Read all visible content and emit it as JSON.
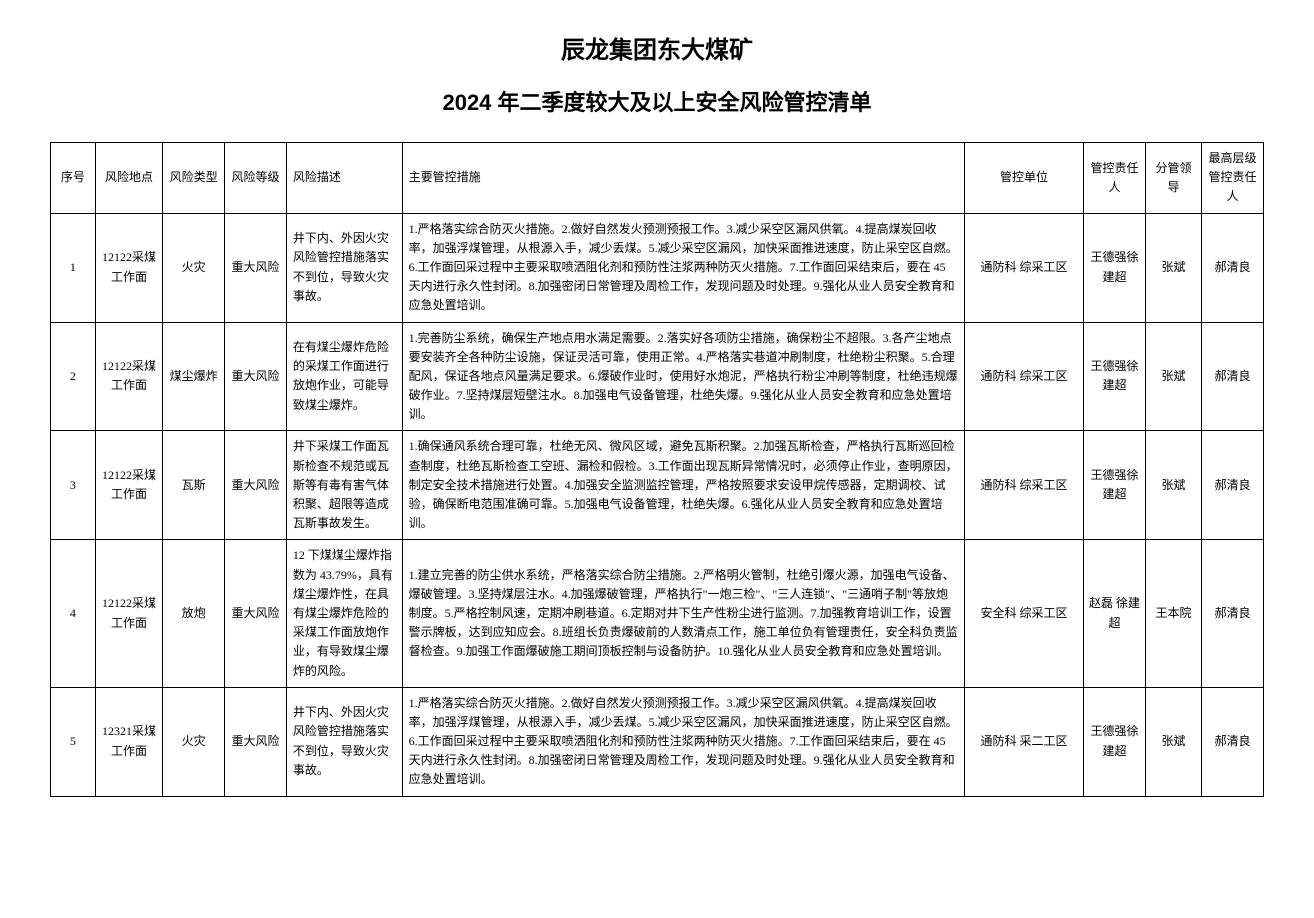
{
  "title": "辰龙集团东大煤矿",
  "subtitle": "2024 年二季度较大及以上安全风险管控清单",
  "headers": {
    "seq": "序号",
    "location": "风险地点",
    "type": "风险类型",
    "level": "风险等级",
    "desc": "风险描述",
    "measures": "主要管控措施",
    "unit": "管控单位",
    "person": "管控责任人",
    "leader": "分管领导",
    "top": "最高层级管控责任人"
  },
  "rows": [
    {
      "seq": "1",
      "location": "12122采煤工作面",
      "type": "火灾",
      "level": "重大风险",
      "desc": "井下内、外因火灾风险管控措施落实不到位，导致火灾事故。",
      "measures": "1.严格落实综合防灭火措施。2.做好自然发火预测预报工作。3.减少采空区漏风供氧。4.提高煤炭回收率，加强浮煤管理，从根源入手，减少丢煤。5.减少采空区漏风，加快采面推进速度，防止采空区自燃。6.工作面回采过程中主要采取喷洒阻化剂和预防性注浆两种防灭火措施。7.工作面回采结束后，要在 45 天内进行永久性封闭。8.加强密闭日常管理及周检工作，发现问题及时处理。9.强化从业人员安全教育和应急处置培训。",
      "unit": "通防科 综采工区",
      "person": "王德强徐建超",
      "leader": "张斌",
      "top": "郝清良"
    },
    {
      "seq": "2",
      "location": "12122采煤工作面",
      "type": "煤尘爆炸",
      "level": "重大风险",
      "desc": "在有煤尘爆炸危险的采煤工作面进行放炮作业，可能导致煤尘爆炸。",
      "measures": "1.完善防尘系统，确保生产地点用水满足需要。2.落实好各项防尘措施，确保粉尘不超限。3.各产尘地点要安装齐全各种防尘设施，保证灵活可靠，使用正常。4.严格落实巷道冲刷制度，杜绝粉尘积聚。5.合理配风，保证各地点风量满足要求。6.爆破作业时，使用好水炮泥，严格执行粉尘冲刷等制度，杜绝违规爆破作业。7.坚持煤层短壁注水。8.加强电气设备管理，杜绝失爆。9.强化从业人员安全教育和应急处置培训。",
      "unit": "通防科 综采工区",
      "person": "王德强徐建超",
      "leader": "张斌",
      "top": "郝清良"
    },
    {
      "seq": "3",
      "location": "12122采煤工作面",
      "type": "瓦斯",
      "level": "重大风险",
      "desc": "井下采煤工作面瓦斯检查不规范或瓦斯等有毒有害气体积聚、超限等造成瓦斯事故发生。",
      "measures": "1.确保通风系统合理可靠，杜绝无风、微风区域，避免瓦斯积聚。2.加强瓦斯检查，严格执行瓦斯巡回检查制度，杜绝瓦斯检查工空班、漏检和假检。3.工作面出现瓦斯异常情况时，必须停止作业，查明原因，制定安全技术措施进行处置。4.加强安全监测监控管理，严格按照要求安设甲烷传感器，定期调校、试验，确保断电范围准确可靠。5.加强电气设备管理，杜绝失爆。6.强化从业人员安全教育和应急处置培训。",
      "unit": "通防科 综采工区",
      "person": "王德强徐建超",
      "leader": "张斌",
      "top": "郝清良"
    },
    {
      "seq": "4",
      "location": "12122采煤工作面",
      "type": "放炮",
      "level": "重大风险",
      "desc": "12 下煤煤尘爆炸指数为 43.79%，具有煤尘爆炸性，在具有煤尘爆炸危险的采煤工作面放炮作业，有导致煤尘爆炸的风险。",
      "measures": "1.建立完善的防尘供水系统，严格落实综合防尘措施。2.严格明火管制，杜绝引爆火源，加强电气设备、爆破管理。3.坚持煤层注水。4.加强爆破管理，严格执行\"一炮三检\"、\"三人连锁\"、\"三通哨子制\"等放炮制度。5.严格控制风速，定期冲刷巷道。6.定期对井下生产性粉尘进行监测。7.加强教育培训工作，设置警示牌板，达到应知应会。8.班组长负责爆破前的人数清点工作，施工单位负有管理责任，安全科负责监督检查。9.加强工作面爆破施工期间顶板控制与设备防护。10.强化从业人员安全教育和应急处置培训。",
      "unit": "安全科 综采工区",
      "person": "赵磊 徐建超",
      "leader": "王本院",
      "top": "郝清良"
    },
    {
      "seq": "5",
      "location": "12321采煤工作面",
      "type": "火灾",
      "level": "重大风险",
      "desc": "井下内、外因火灾风险管控措施落实不到位，导致火灾事故。",
      "measures": "1.严格落实综合防灭火措施。2.做好自然发火预测预报工作。3.减少采空区漏风供氧。4.提高煤炭回收率，加强浮煤管理，从根源入手，减少丢煤。5.减少采空区漏风，加快采面推进速度，防止采空区自燃。6.工作面回采过程中主要采取喷洒阻化剂和预防性注浆两种防灭火措施。7.工作面回采结束后，要在 45 天内进行永久性封闭。8.加强密闭日常管理及周检工作，发现问题及时处理。9.强化从业人员安全教育和应急处置培训。",
      "unit": "通防科 采二工区",
      "person": "王德强徐建超",
      "leader": "张斌",
      "top": "郝清良"
    }
  ]
}
